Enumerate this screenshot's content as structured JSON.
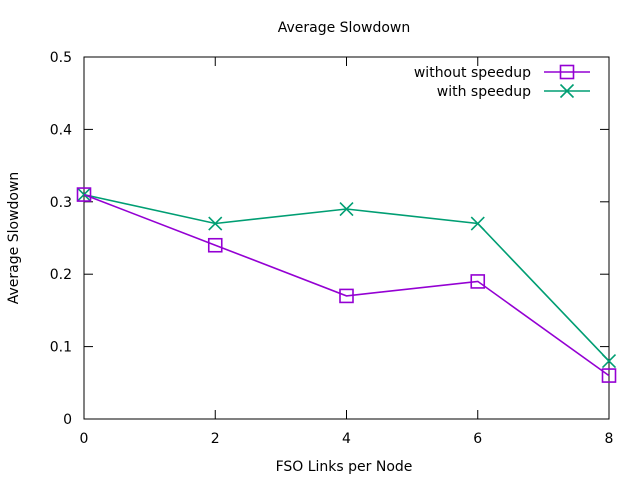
{
  "chart_data": {
    "type": "line",
    "title": "Average Slowdown",
    "xlabel": "FSO Links per Node",
    "ylabel": "Average Slowdown",
    "x": [
      0,
      2,
      4,
      6,
      8
    ],
    "xlim": [
      0,
      8
    ],
    "ylim": [
      0,
      0.5
    ],
    "xticks": [
      0,
      2,
      4,
      6,
      8
    ],
    "yticks": [
      0,
      0.1,
      0.2,
      0.3,
      0.4,
      0.5
    ],
    "xtick_labels": [
      "0",
      "2",
      "4",
      "6",
      "8"
    ],
    "ytick_labels": [
      "0",
      "0.1",
      "0.2",
      "0.3",
      "0.4",
      "0.5"
    ],
    "grid": false,
    "legend_position": "top-right",
    "series": [
      {
        "name": "without speedup",
        "values": [
          0.31,
          0.24,
          0.17,
          0.19,
          0.06
        ],
        "color": "#9400d3",
        "marker": "open-square"
      },
      {
        "name": "with speedup",
        "values": [
          0.31,
          0.27,
          0.29,
          0.27,
          0.08
        ],
        "color": "#009e73",
        "marker": "x-cross"
      }
    ]
  }
}
